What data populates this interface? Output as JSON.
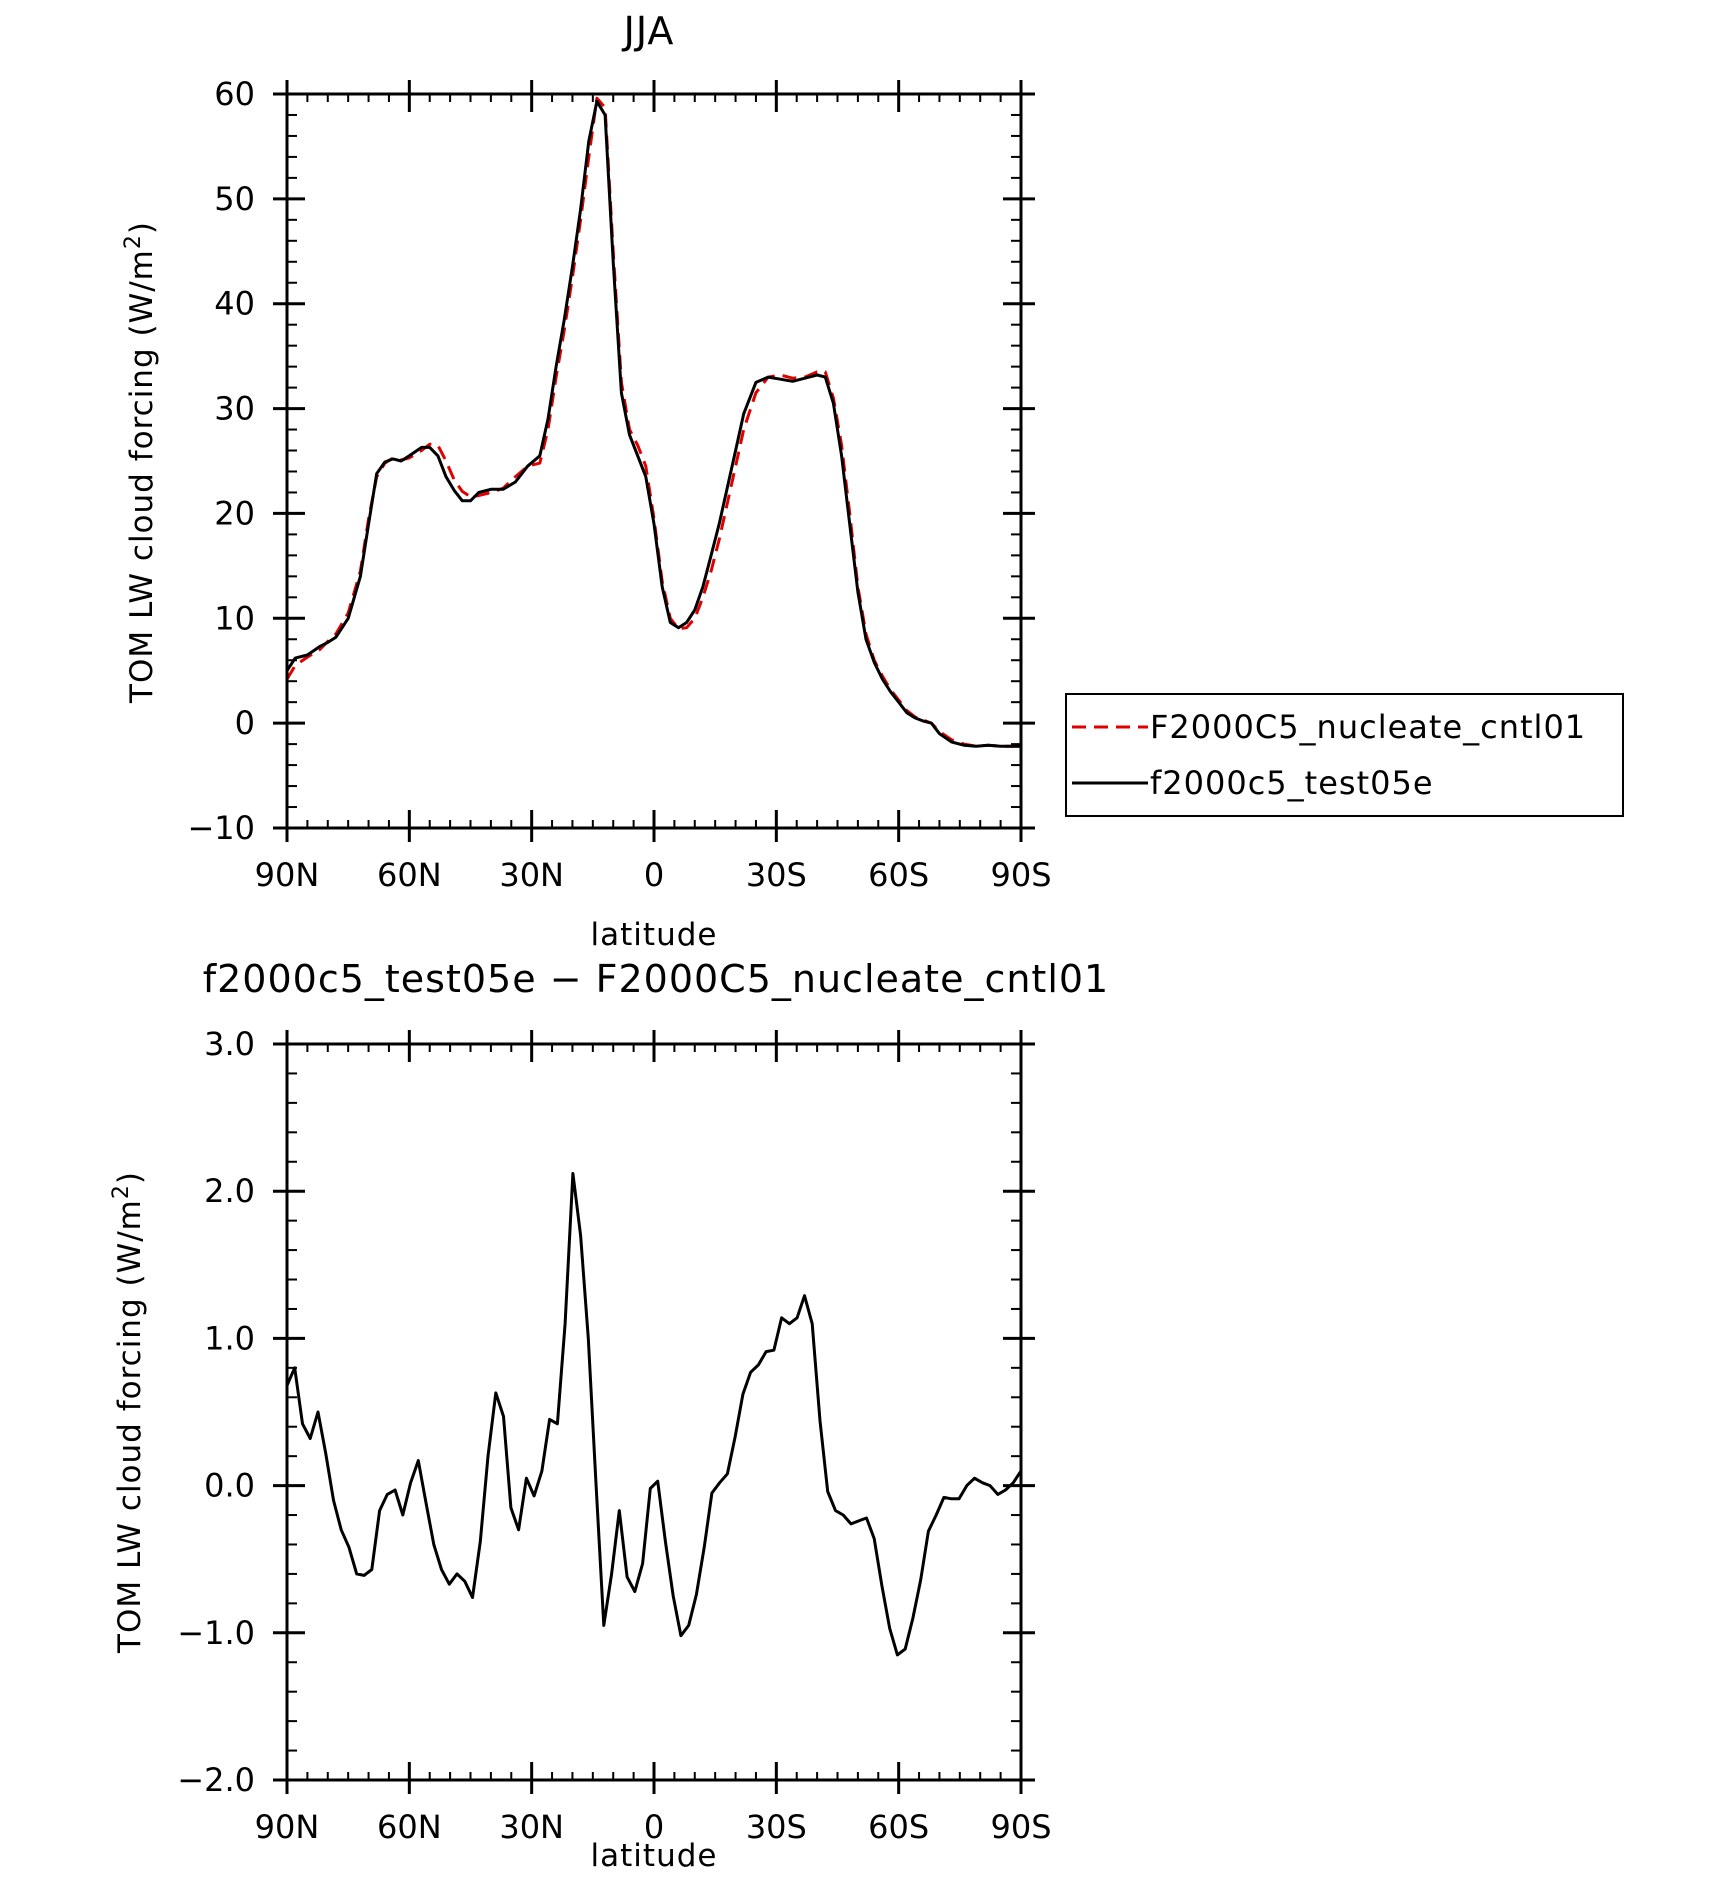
{
  "chart_data": [
    {
      "type": "line",
      "title": "JJA",
      "xlabel": "latitude",
      "ylabel": "TOM LW cloud forcing (W/m",
      "ylabel_sup": "2",
      "ylabel_end": ")",
      "xlim": [
        90,
        -90
      ],
      "ylim": [
        -10,
        60
      ],
      "xticks": [
        {
          "v": 90,
          "label": "90N"
        },
        {
          "v": 60,
          "label": "60N"
        },
        {
          "v": 30,
          "label": "30N"
        },
        {
          "v": 0,
          "label": "0"
        },
        {
          "v": -30,
          "label": "30S"
        },
        {
          "v": -60,
          "label": "60S"
        },
        {
          "v": -90,
          "label": "90S"
        }
      ],
      "yticks": [
        {
          "v": -10,
          "label": "−10"
        },
        {
          "v": 0,
          "label": "0"
        },
        {
          "v": 10,
          "label": "10"
        },
        {
          "v": 20,
          "label": "20"
        },
        {
          "v": 30,
          "label": "30"
        },
        {
          "v": 40,
          "label": "40"
        },
        {
          "v": 50,
          "label": "50"
        },
        {
          "v": 60,
          "label": "60"
        }
      ],
      "legend_position": "right",
      "series": [
        {
          "name": "F2000C5_nucleate_cntl01",
          "color": "#e00000",
          "dash": true,
          "x": [
            90,
            88,
            85,
            82,
            80,
            78,
            75,
            72,
            70,
            68,
            66,
            64,
            62,
            60,
            57,
            55,
            53,
            51,
            49,
            47,
            45,
            43,
            40,
            37,
            34,
            31,
            28,
            26,
            24,
            22,
            20,
            18,
            16,
            14,
            12,
            10,
            8,
            6,
            4,
            2,
            0,
            -2,
            -4,
            -6,
            -8,
            -10,
            -12,
            -14,
            -16,
            -18,
            -20,
            -22,
            -25,
            -28,
            -31,
            -34,
            -37,
            -40,
            -42,
            -44,
            -46,
            -48,
            -50,
            -52,
            -54,
            -56,
            -58,
            -60,
            -62,
            -64,
            -66,
            -68,
            -70,
            -73,
            -76,
            -79,
            -82,
            -85,
            -88,
            -90
          ],
          "y": [
            4.2,
            5.5,
            6.3,
            7.0,
            7.8,
            8.5,
            10.5,
            14.5,
            19.5,
            23.5,
            24.8,
            25.3,
            25.1,
            25.3,
            26.0,
            26.6,
            26.5,
            25.0,
            23.2,
            22.1,
            21.6,
            21.7,
            22.0,
            22.4,
            23.5,
            24.5,
            24.8,
            28.0,
            33.0,
            37.5,
            42.5,
            48.0,
            54.0,
            59.6,
            58.7,
            45.0,
            32.5,
            28.0,
            26.5,
            24.5,
            19.5,
            13.5,
            10.0,
            9.0,
            9.1,
            10.0,
            12.0,
            14.5,
            17.5,
            21.0,
            24.5,
            28.0,
            31.5,
            33.0,
            33.2,
            32.9,
            33.0,
            33.5,
            33.5,
            31.0,
            26.5,
            20.0,
            13.0,
            8.5,
            6.0,
            4.5,
            3.2,
            2.2,
            1.2,
            0.6,
            0.3,
            0.0,
            -0.8,
            -1.6,
            -2.0,
            -2.2,
            -2.1,
            -2.2,
            -2.2,
            -2.2
          ]
        },
        {
          "name": "f2000c5_test05e",
          "color": "#000000",
          "dash": false,
          "x": [
            90,
            88,
            85,
            82,
            80,
            78,
            75,
            72,
            70,
            68,
            66,
            64,
            62,
            60,
            57,
            55,
            53,
            51,
            49,
            47,
            45,
            43,
            40,
            37,
            34,
            31,
            28,
            26,
            24,
            22,
            20,
            18,
            16,
            14,
            12,
            10,
            8,
            6,
            4,
            2,
            0,
            -2,
            -4,
            -6,
            -8,
            -10,
            -12,
            -14,
            -16,
            -18,
            -20,
            -22,
            -25,
            -28,
            -31,
            -34,
            -37,
            -40,
            -42,
            -44,
            -46,
            -48,
            -50,
            -52,
            -54,
            -56,
            -58,
            -60,
            -62,
            -64,
            -66,
            -68,
            -70,
            -73,
            -76,
            -79,
            -82,
            -85,
            -88,
            -90
          ],
          "y": [
            5.0,
            6.2,
            6.5,
            7.3,
            7.7,
            8.2,
            10.0,
            14.0,
            19.0,
            23.8,
            24.9,
            25.2,
            25.0,
            25.5,
            26.3,
            26.3,
            25.5,
            23.5,
            22.2,
            21.2,
            21.2,
            22.0,
            22.3,
            22.3,
            23.0,
            24.5,
            25.5,
            29.0,
            34.0,
            38.5,
            43.5,
            49.0,
            55.5,
            59.3,
            58.0,
            44.0,
            31.5,
            27.5,
            25.5,
            23.5,
            19.0,
            13.0,
            9.6,
            9.1,
            9.6,
            10.8,
            13.0,
            16.0,
            19.0,
            22.5,
            26.0,
            29.5,
            32.5,
            33.0,
            32.8,
            32.6,
            32.9,
            33.2,
            33.0,
            30.5,
            25.5,
            19.0,
            12.5,
            8.0,
            5.8,
            4.2,
            3.0,
            2.0,
            1.0,
            0.5,
            0.2,
            0.0,
            -1.0,
            -1.8,
            -2.1,
            -2.2,
            -2.1,
            -2.2,
            -2.2,
            -2.2
          ]
        }
      ]
    },
    {
      "type": "line",
      "title": "f2000c5_test05e − F2000C5_nucleate_cntl01",
      "xlabel": "latitude",
      "ylabel": "TOM LW cloud forcing (W/m",
      "ylabel_sup": "2",
      "ylabel_end": ")",
      "xlim": [
        90,
        -90
      ],
      "ylim": [
        -2.0,
        3.0
      ],
      "xticks": [
        {
          "v": 90,
          "label": "90N"
        },
        {
          "v": 60,
          "label": "60N"
        },
        {
          "v": 30,
          "label": "30N"
        },
        {
          "v": 0,
          "label": "0"
        },
        {
          "v": -30,
          "label": "30S"
        },
        {
          "v": -60,
          "label": "60S"
        },
        {
          "v": -90,
          "label": "90S"
        }
      ],
      "yticks": [
        {
          "v": -2.0,
          "label": "−2.0"
        },
        {
          "v": -1.0,
          "label": "−1.0"
        },
        {
          "v": 0.0,
          "label": "0.0"
        },
        {
          "v": 1.0,
          "label": "1.0"
        },
        {
          "v": 2.0,
          "label": "2.0"
        },
        {
          "v": 3.0,
          "label": "3.0"
        }
      ],
      "series": [
        {
          "name": "",
          "color": "#000000",
          "dash": false,
          "x": [
            90.0,
            88.1,
            86.2,
            84.3,
            82.4,
            80.5,
            78.6,
            76.7,
            74.8,
            72.9,
            71.1,
            69.2,
            67.3,
            65.4,
            63.5,
            61.6,
            59.7,
            57.8,
            55.9,
            54.0,
            52.1,
            50.2,
            48.3,
            46.4,
            44.5,
            42.6,
            40.7,
            38.8,
            36.9,
            35.1,
            33.2,
            31.3,
            29.4,
            27.5,
            25.6,
            23.7,
            21.8,
            19.9,
            18.0,
            16.1,
            14.2,
            12.3,
            10.4,
            8.5,
            6.6,
            4.7,
            2.8,
            0.9,
            -0.9,
            -2.8,
            -4.7,
            -6.6,
            -8.5,
            -10.4,
            -12.3,
            -14.2,
            -16.1,
            -18.0,
            -19.9,
            -21.8,
            -23.7,
            -25.6,
            -27.5,
            -29.4,
            -31.3,
            -33.2,
            -35.1,
            -36.9,
            -38.8,
            -40.7,
            -42.6,
            -44.5,
            -46.4,
            -48.3,
            -50.2,
            -52.1,
            -54.0,
            -55.9,
            -57.8,
            -59.7,
            -61.6,
            -63.5,
            -65.4,
            -67.3,
            -69.2,
            -71.1,
            -72.9,
            -74.8,
            -76.7,
            -78.6,
            -80.5,
            -82.4,
            -84.3,
            -86.2,
            -88.1,
            -90.0
          ],
          "y": [
            0.68,
            0.8,
            0.42,
            0.32,
            0.5,
            0.22,
            -0.1,
            -0.3,
            -0.42,
            -0.6,
            -0.61,
            -0.57,
            -0.17,
            -0.06,
            -0.03,
            -0.2,
            0.02,
            0.17,
            -0.12,
            -0.4,
            -0.57,
            -0.67,
            -0.6,
            -0.65,
            -0.76,
            -0.38,
            0.2,
            0.63,
            0.47,
            -0.15,
            -0.3,
            0.05,
            -0.07,
            0.1,
            0.45,
            0.42,
            1.1,
            2.12,
            1.7,
            1.0,
            0.0,
            -0.95,
            -0.6,
            -0.17,
            -0.62,
            -0.72,
            -0.53,
            -0.02,
            0.03,
            -0.38,
            -0.75,
            -1.02,
            -0.95,
            -0.74,
            -0.42,
            -0.05,
            0.02,
            0.08,
            0.33,
            0.62,
            0.77,
            0.82,
            0.91,
            0.92,
            1.14,
            1.1,
            1.14,
            1.29,
            1.1,
            0.44,
            -0.04,
            -0.17,
            -0.2,
            -0.26,
            -0.24,
            -0.22,
            -0.36,
            -0.68,
            -0.97,
            -1.15,
            -1.11,
            -0.9,
            -0.64,
            -0.31,
            -0.2,
            -0.08,
            -0.09,
            -0.09,
            0.0,
            0.05,
            0.02,
            0.0,
            -0.06,
            -0.03,
            0.02,
            0.1
          ]
        }
      ]
    }
  ]
}
